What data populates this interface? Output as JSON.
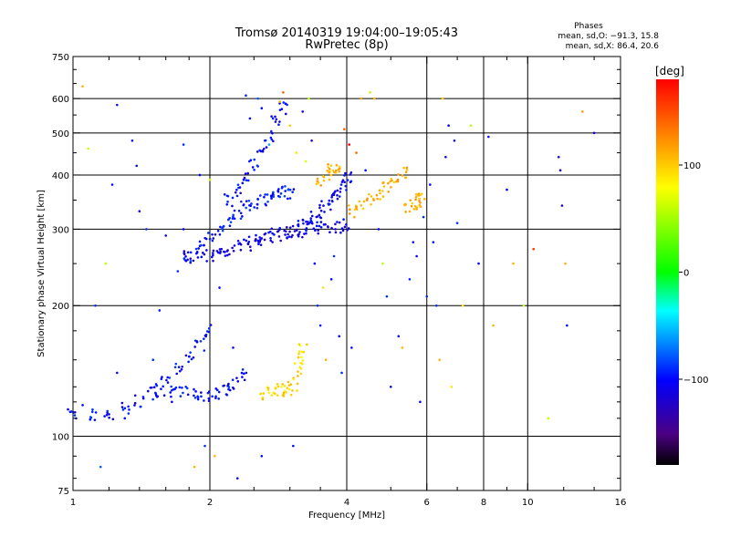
{
  "chart_data": {
    "type": "scatter",
    "title": "Tromsø 20140319 19:04:00–19:05:43",
    "subtitle": "RwPretec (8p)",
    "xlabel": "Frequency [MHz]",
    "ylabel": "Stationary phase Virtual Height [km]",
    "x_scale": "log2",
    "y_scale": "log",
    "xlim": [
      1,
      16
    ],
    "ylim": [
      75,
      750
    ],
    "x_ticks": [
      1,
      2,
      4,
      6,
      8,
      10,
      16
    ],
    "x_tick_labels": [
      "1",
      "2",
      "4",
      "6",
      "8",
      "10",
      "16"
    ],
    "x_minor_ticks": [
      1.2,
      1.4,
      1.6,
      1.8,
      2.5,
      3,
      3.5,
      5,
      7,
      9,
      12,
      14
    ],
    "y_ticks": [
      75,
      100,
      200,
      300,
      400,
      500,
      600,
      750
    ],
    "y_tick_labels": [
      "75",
      "100",
      "200",
      "300",
      "400",
      "500",
      "600",
      "750"
    ],
    "y_minor_ticks": [
      80,
      90,
      110,
      120,
      130,
      150,
      175,
      250,
      350,
      450,
      550,
      650,
      700
    ],
    "grid_x": [
      2,
      4,
      6,
      8,
      10
    ],
    "grid_y": [
      100,
      200,
      300,
      400,
      500,
      600
    ],
    "phases_box": {
      "heading": "Phases",
      "line1": "mean, sd,O:  −91.3, 15.8",
      "line2": "mean, sd,X:  86.4, 20.6"
    },
    "colorbar": {
      "label": "[deg]",
      "range": [
        -180,
        180
      ],
      "ticks": [
        100,
        0,
        -100
      ],
      "tick_labels": [
        "100",
        "0",
        "−100"
      ]
    },
    "traces": [
      {
        "name": "",
        "color_deg": -100,
        "points": [
          [
            1.0,
            112
          ],
          [
            1.1,
            112
          ],
          [
            1.2,
            113
          ],
          [
            1.3,
            116
          ],
          [
            1.4,
            120
          ],
          [
            1.5,
            126
          ],
          [
            1.6,
            133
          ],
          [
            1.7,
            142
          ],
          [
            1.8,
            152
          ],
          [
            1.9,
            163
          ],
          [
            2.0,
            175
          ]
        ]
      },
      {
        "name": "",
        "color_deg": -100,
        "points": [
          [
            1.55,
            128
          ],
          [
            1.65,
            127
          ],
          [
            1.75,
            126
          ],
          [
            1.85,
            125
          ],
          [
            1.95,
            125
          ],
          [
            2.05,
            126
          ],
          [
            2.15,
            128
          ],
          [
            2.25,
            132
          ],
          [
            2.35,
            138
          ]
        ]
      },
      {
        "name": "",
        "color_deg": -110,
        "points": [
          [
            1.8,
            258
          ],
          [
            1.9,
            259
          ],
          [
            2.0,
            262
          ],
          [
            2.1,
            265
          ],
          [
            2.2,
            269
          ],
          [
            2.3,
            273
          ],
          [
            2.4,
            277
          ],
          [
            2.5,
            281
          ],
          [
            2.6,
            285
          ],
          [
            2.7,
            288
          ],
          [
            2.8,
            291
          ],
          [
            2.9,
            293
          ],
          [
            3.0,
            296
          ],
          [
            3.2,
            298
          ],
          [
            3.4,
            300
          ],
          [
            3.6,
            302
          ],
          [
            3.8,
            304
          ],
          [
            4.0,
            306
          ]
        ]
      },
      {
        "name": "",
        "color_deg": -95,
        "points": [
          [
            1.8,
            262
          ],
          [
            1.9,
            272
          ],
          [
            2.0,
            285
          ],
          [
            2.1,
            300
          ],
          [
            2.2,
            315
          ],
          [
            2.3,
            328
          ],
          [
            2.4,
            338
          ],
          [
            2.5,
            346
          ],
          [
            2.6,
            352
          ],
          [
            2.7,
            356
          ],
          [
            2.8,
            360
          ],
          [
            2.9,
            363
          ],
          [
            3.0,
            365
          ]
        ]
      },
      {
        "name": "",
        "color_deg": -105,
        "points": [
          [
            3.1,
            300
          ],
          [
            3.2,
            305
          ],
          [
            3.3,
            312
          ],
          [
            3.4,
            320
          ],
          [
            3.5,
            330
          ],
          [
            3.6,
            340
          ],
          [
            3.7,
            352
          ],
          [
            3.8,
            365
          ],
          [
            3.9,
            380
          ],
          [
            4.0,
            395
          ]
        ]
      },
      {
        "name": "",
        "color_deg": 95,
        "points": [
          [
            2.65,
            126
          ],
          [
            2.75,
            127
          ],
          [
            2.85,
            128
          ],
          [
            2.95,
            128
          ],
          [
            3.05,
            129
          ],
          [
            3.1,
            140
          ],
          [
            3.15,
            150
          ],
          [
            3.2,
            160
          ]
        ]
      },
      {
        "name": "",
        "color_deg": 110,
        "points": [
          [
            3.5,
            390
          ],
          [
            3.6,
            400
          ],
          [
            3.7,
            410
          ],
          [
            3.8,
            420
          ],
          [
            4.1,
            330
          ],
          [
            4.3,
            340
          ],
          [
            4.5,
            350
          ],
          [
            4.7,
            360
          ],
          [
            4.9,
            375
          ],
          [
            5.1,
            390
          ],
          [
            5.3,
            405
          ],
          [
            5.5,
            340
          ],
          [
            5.6,
            345
          ],
          [
            5.7,
            350
          ],
          [
            5.8,
            355
          ]
        ]
      },
      {
        "name": "",
        "color_deg": -100,
        "points": [
          [
            2.2,
            350
          ],
          [
            2.3,
            370
          ],
          [
            2.4,
            395
          ],
          [
            2.5,
            420
          ],
          [
            2.6,
            450
          ],
          [
            2.7,
            490
          ],
          [
            2.8,
            530
          ],
          [
            2.9,
            570
          ]
        ]
      }
    ],
    "scatter": [
      [
        1.05,
        118,
        -100
      ],
      [
        1.12,
        200,
        -90
      ],
      [
        1.18,
        250,
        60
      ],
      [
        1.22,
        380,
        -100
      ],
      [
        1.35,
        480,
        -110
      ],
      [
        1.38,
        420,
        -100
      ],
      [
        1.4,
        330,
        -120
      ],
      [
        1.45,
        300,
        -90
      ],
      [
        1.08,
        460,
        60
      ],
      [
        1.05,
        640,
        110
      ],
      [
        1.25,
        580,
        -100
      ],
      [
        1.15,
        85,
        -80
      ],
      [
        1.3,
        110,
        -100
      ],
      [
        1.55,
        195,
        -95
      ],
      [
        1.6,
        290,
        -100
      ],
      [
        1.7,
        240,
        -90
      ],
      [
        1.75,
        300,
        -100
      ],
      [
        1.85,
        85,
        110
      ],
      [
        1.95,
        95,
        -90
      ],
      [
        2.05,
        90,
        110
      ],
      [
        2.1,
        220,
        -100
      ],
      [
        2.25,
        160,
        -100
      ],
      [
        2.4,
        610,
        -90
      ],
      [
        2.45,
        540,
        -100
      ],
      [
        2.55,
        600,
        -80
      ],
      [
        2.6,
        570,
        -100
      ],
      [
        2.7,
        470,
        -60
      ],
      [
        2.85,
        590,
        110
      ],
      [
        2.9,
        620,
        140
      ],
      [
        3.0,
        520,
        100
      ],
      [
        3.1,
        450,
        90
      ],
      [
        3.2,
        560,
        -100
      ],
      [
        3.25,
        430,
        70
      ],
      [
        3.3,
        600,
        60
      ],
      [
        3.35,
        480,
        -120
      ],
      [
        3.4,
        250,
        -100
      ],
      [
        3.45,
        200,
        -90
      ],
      [
        3.5,
        180,
        -100
      ],
      [
        3.55,
        220,
        90
      ],
      [
        3.6,
        150,
        110
      ],
      [
        3.7,
        230,
        -100
      ],
      [
        3.75,
        260,
        -90
      ],
      [
        3.85,
        170,
        -100
      ],
      [
        3.95,
        510,
        140
      ],
      [
        4.05,
        470,
        180
      ],
      [
        4.2,
        450,
        140
      ],
      [
        4.3,
        600,
        120
      ],
      [
        4.4,
        410,
        -100
      ],
      [
        4.5,
        620,
        60
      ],
      [
        4.6,
        600,
        110
      ],
      [
        4.7,
        300,
        -100
      ],
      [
        4.8,
        250,
        60
      ],
      [
        4.9,
        210,
        -90
      ],
      [
        5.0,
        130,
        -100
      ],
      [
        5.2,
        170,
        -100
      ],
      [
        5.3,
        160,
        110
      ],
      [
        5.5,
        230,
        -90
      ],
      [
        5.7,
        260,
        -100
      ],
      [
        5.8,
        120,
        -100
      ],
      [
        5.9,
        320,
        -90
      ],
      [
        6.1,
        380,
        -100
      ],
      [
        6.2,
        280,
        -100
      ],
      [
        6.3,
        200,
        -90
      ],
      [
        6.4,
        150,
        110
      ],
      [
        6.5,
        600,
        100
      ],
      [
        6.6,
        440,
        -100
      ],
      [
        6.7,
        520,
        -100
      ],
      [
        6.8,
        130,
        90
      ],
      [
        6.9,
        480,
        -100
      ],
      [
        7.0,
        310,
        -90
      ],
      [
        7.2,
        200,
        90
      ],
      [
        7.5,
        520,
        60
      ],
      [
        7.8,
        250,
        -100
      ],
      [
        8.2,
        490,
        -100
      ],
      [
        8.4,
        180,
        110
      ],
      [
        9.0,
        370,
        -100
      ],
      [
        9.3,
        250,
        110
      ],
      [
        9.8,
        200,
        60
      ],
      [
        10.3,
        270,
        160
      ],
      [
        11.1,
        110,
        60
      ],
      [
        11.8,
        410,
        -110
      ],
      [
        11.9,
        340,
        -100
      ],
      [
        12.1,
        250,
        110
      ],
      [
        12.2,
        180,
        -100
      ],
      [
        13.2,
        560,
        120
      ],
      [
        14.0,
        500,
        -120
      ],
      [
        11.7,
        440,
        -100
      ],
      [
        5.6,
        280,
        -100
      ],
      [
        6.0,
        210,
        -90
      ],
      [
        4.1,
        160,
        -100
      ],
      [
        3.9,
        140,
        -90
      ],
      [
        3.05,
        95,
        -100
      ],
      [
        2.6,
        90,
        -100
      ],
      [
        2.3,
        80,
        -100
      ],
      [
        1.75,
        470,
        -90
      ],
      [
        1.9,
        400,
        -100
      ],
      [
        2.0,
        390,
        60
      ],
      [
        1.65,
        120,
        -100
      ],
      [
        1.5,
        150,
        -90
      ],
      [
        1.25,
        140,
        -100
      ]
    ]
  }
}
